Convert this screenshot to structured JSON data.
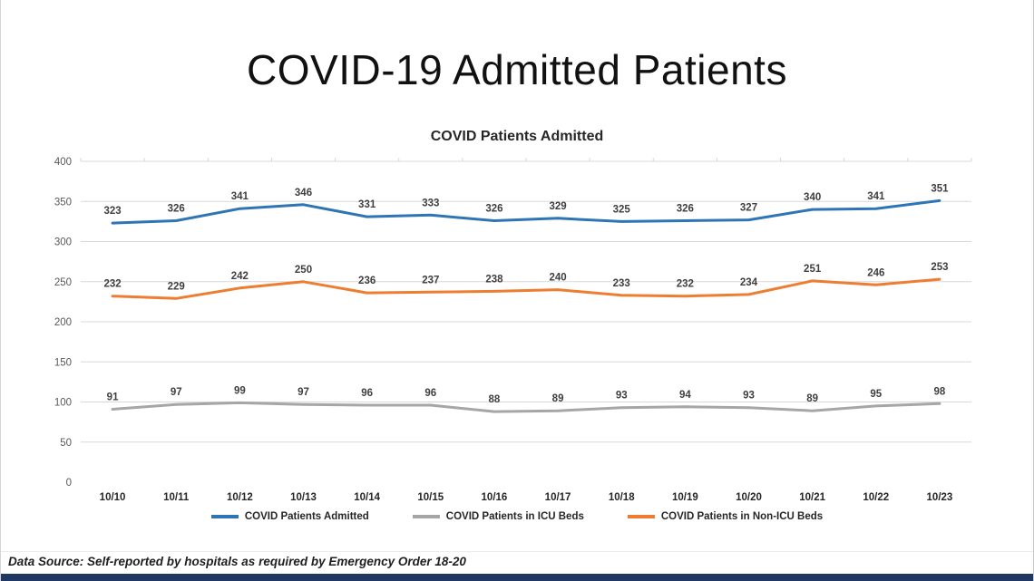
{
  "page": {
    "title": "COVID-19 Admitted Patients",
    "footer": {
      "data_source": "Data Source: Self-reported by hospitals as required by Emergency Order 18-20"
    }
  },
  "chart_data": {
    "type": "line",
    "title": "COVID Patients Admitted",
    "categories": [
      "10/10",
      "10/11",
      "10/12",
      "10/13",
      "10/14",
      "10/15",
      "10/16",
      "10/17",
      "10/18",
      "10/19",
      "10/20",
      "10/21",
      "10/22",
      "10/23"
    ],
    "series": [
      {
        "name": "COVID Patients Admitted",
        "color": "#2E75B6",
        "values": [
          323,
          326,
          341,
          346,
          331,
          333,
          326,
          329,
          325,
          326,
          327,
          340,
          341,
          351
        ]
      },
      {
        "name": "COVID Patients in ICU Beds",
        "color": "#A6A6A6",
        "values": [
          91,
          97,
          99,
          97,
          96,
          96,
          88,
          89,
          93,
          94,
          93,
          89,
          95,
          98
        ]
      },
      {
        "name": "COVID Patients in Non-ICU Beds",
        "color": "#ED7D31",
        "values": [
          232,
          229,
          242,
          250,
          236,
          237,
          238,
          240,
          233,
          232,
          234,
          251,
          246,
          253
        ]
      }
    ],
    "ylim": [
      0,
      400
    ],
    "ytick_step": 50,
    "grid": true,
    "data_labels": true,
    "legend_position": "bottom"
  },
  "colors": {
    "footer_bar": "#203864",
    "grid": "#D9D9D9",
    "y_axis_text": "#595959",
    "x_axis_text": "#262626",
    "data_label_text": "#3f3f3f"
  }
}
